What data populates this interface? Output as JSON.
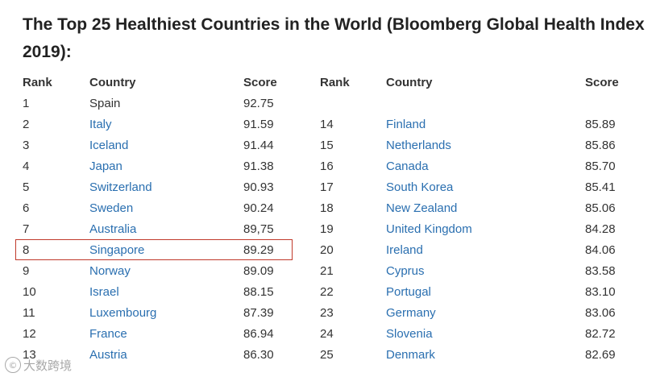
{
  "title": "The Top 25 Healthiest Countries in the World (Bloomberg Global Health Index 2019):",
  "headers": {
    "rank": "Rank",
    "country": "Country",
    "score": "Score"
  },
  "left_rows": [
    {
      "rank": "1",
      "country": "Spain",
      "score": "92.75",
      "link": false
    },
    {
      "rank": "2",
      "country": "Italy",
      "score": "91.59",
      "link": true
    },
    {
      "rank": "3",
      "country": "Iceland",
      "score": "91.44",
      "link": true
    },
    {
      "rank": "4",
      "country": "Japan",
      "score": "91.38",
      "link": true
    },
    {
      "rank": "5",
      "country": "Switzerland",
      "score": "90.93",
      "link": true
    },
    {
      "rank": "6",
      "country": "Sweden",
      "score": "90.24",
      "link": true
    },
    {
      "rank": "7",
      "country": "Australia",
      "score": "89,75",
      "link": true
    },
    {
      "rank": "8",
      "country": "Singapore",
      "score": "89.29",
      "link": true,
      "highlighted": true
    },
    {
      "rank": "9",
      "country": "Norway",
      "score": "89.09",
      "link": true
    },
    {
      "rank": "10",
      "country": "Israel",
      "score": "88.15",
      "link": true
    },
    {
      "rank": "11",
      "country": "Luxembourg",
      "score": "87.39",
      "link": true
    },
    {
      "rank": "12",
      "country": "France",
      "score": "86.94",
      "link": true
    },
    {
      "rank": "13",
      "country": "Austria",
      "score": "86.30",
      "link": true
    }
  ],
  "right_rows": [
    {
      "rank": "14",
      "country": "Finland",
      "score": "85.89",
      "link": true
    },
    {
      "rank": "15",
      "country": "Netherlands",
      "score": "85.86",
      "link": true
    },
    {
      "rank": "16",
      "country": "Canada",
      "score": "85.70",
      "link": true
    },
    {
      "rank": "17",
      "country": "South Korea",
      "score": "85.41",
      "link": true
    },
    {
      "rank": "18",
      "country": "New Zealand",
      "score": "85.06",
      "link": true
    },
    {
      "rank": "19",
      "country": "United Kingdom",
      "score": "84.28",
      "link": true
    },
    {
      "rank": "20",
      "country": "Ireland",
      "score": "84.06",
      "link": true
    },
    {
      "rank": "21",
      "country": "Cyprus",
      "score": "83.58",
      "link": true
    },
    {
      "rank": "22",
      "country": "Portugal",
      "score": "83.10",
      "link": true
    },
    {
      "rank": "23",
      "country": "Germany",
      "score": "83.06",
      "link": true
    },
    {
      "rank": "24",
      "country": "Slovenia",
      "score": "82.72",
      "link": true
    },
    {
      "rank": "25",
      "country": "Denmark",
      "score": "82.69",
      "link": true
    }
  ],
  "colors": {
    "link": "#2a6fb0",
    "text": "#333333",
    "highlight_border": "#c0392b"
  },
  "watermark": {
    "logo": "©",
    "text": "大数跨境"
  }
}
